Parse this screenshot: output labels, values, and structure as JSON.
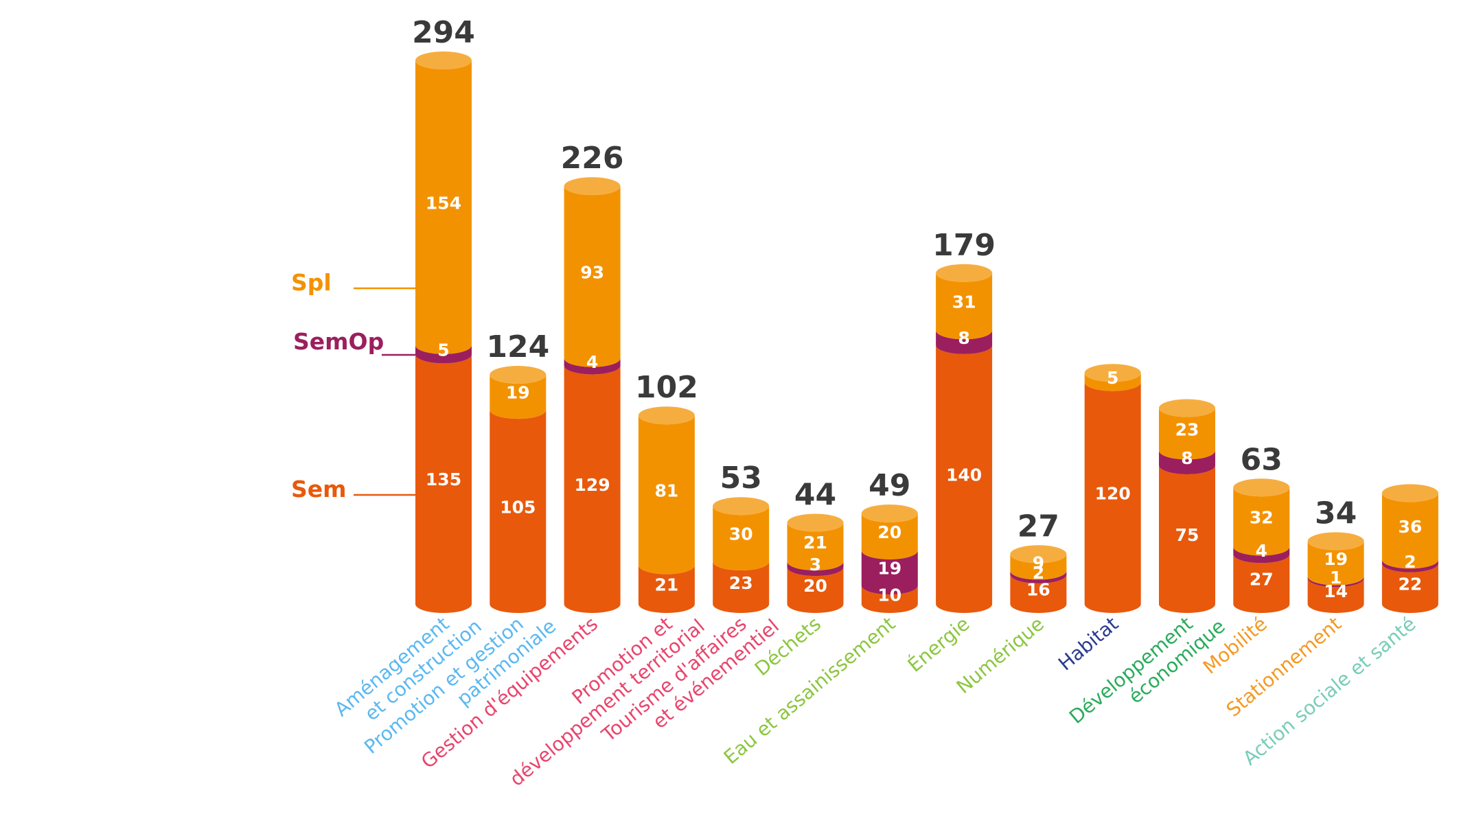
{
  "chart_data": {
    "type": "bar",
    "stacked": true,
    "style": "cylinder",
    "categories": [
      [
        "Aménagement",
        "et construction"
      ],
      [
        "Promotion et gestion",
        "patrimoniale"
      ],
      [
        "Gestion d'équipements"
      ],
      [
        "Promotion et",
        "développement territorial"
      ],
      [
        "Tourisme d'affaires",
        "et événementiel"
      ],
      [
        "Déchets"
      ],
      [
        "Eau et assainissement"
      ],
      [
        "Énergie"
      ],
      [
        "Numérique"
      ],
      [
        "Habitat"
      ],
      [
        "Développement",
        "économique"
      ],
      [
        "Mobilité"
      ],
      [
        "Stationnement"
      ],
      [
        "Action sociale et santé"
      ]
    ],
    "category_colors": [
      "#5bb8f0",
      "#5bb8f0",
      "#e8456d",
      "#e8456d",
      "#e8456d",
      "#8cc63f",
      "#8cc63f",
      "#8cc63f",
      "#8cc63f",
      "#2a3b8f",
      "#2aab5c",
      "#f39a24",
      "#f39a24",
      "#79cdb8"
    ],
    "series": [
      {
        "name": "Sem",
        "color": "#e8590c",
        "values": [
          135,
          105,
          129,
          21,
          23,
          20,
          10,
          140,
          16,
          120,
          75,
          27,
          14,
          22
        ]
      },
      {
        "name": "SemOp",
        "color": "#9b1f5e",
        "values": [
          5,
          null,
          4,
          null,
          null,
          3,
          19,
          8,
          2,
          null,
          8,
          4,
          1,
          2
        ]
      },
      {
        "name": "Spl",
        "color": "#f39200",
        "values": [
          154,
          19,
          93,
          81,
          30,
          21,
          20,
          31,
          9,
          5,
          23,
          32,
          19,
          36
        ]
      }
    ],
    "totals": [
      "294",
      "124",
      "226",
      "102",
      "53",
      "44",
      "49",
      "179",
      "27",
      "",
      "",
      "63",
      "34",
      ""
    ],
    "legend": [
      {
        "label": "Spl",
        "color": "#f39200"
      },
      {
        "label": "SemOp",
        "color": "#9b1f5e"
      },
      {
        "label": "Sem",
        "color": "#e8590c"
      }
    ],
    "legend_position": "left",
    "grid": false,
    "ylim": [
      0,
      300
    ]
  }
}
